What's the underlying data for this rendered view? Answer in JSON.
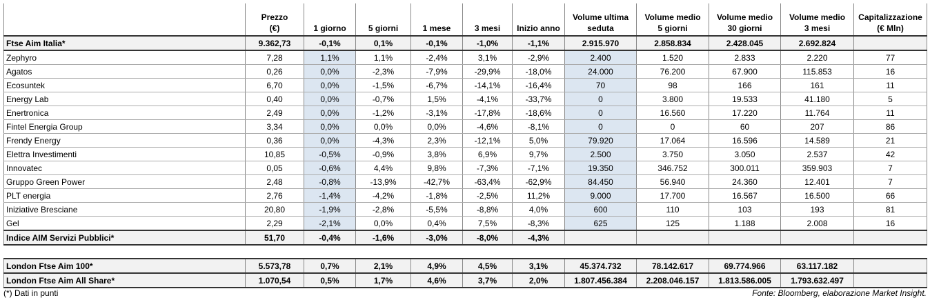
{
  "table": {
    "columns": [
      [
        "Prezzo",
        "(€)"
      ],
      [
        "1 giorno"
      ],
      [
        "5 giorni"
      ],
      [
        "1 mese"
      ],
      [
        "3 mesi"
      ],
      [
        "Inizio anno"
      ],
      [
        "Volume ultima",
        "seduta"
      ],
      [
        "Volume medio",
        "5 giorni"
      ],
      [
        "Volume medio",
        "30 giorni"
      ],
      [
        "Volume medio",
        "3 mesi"
      ],
      [
        "Capitalizzazione",
        "(€ Mln)"
      ]
    ],
    "sections": [
      {
        "rows": [
          [
            "Ftse Aim Italia*",
            "9.362,73",
            "-0,1%",
            "0,1%",
            "-0,1%",
            "-1,0%",
            "-1,1%",
            "2.915.970",
            "2.858.834",
            "2.428.045",
            "2.692.824",
            null
          ]
        ]
      },
      {
        "rows": [
          [
            "Zephyro",
            "7,28",
            "1,1%",
            "1,1%",
            "-2,4%",
            "3,1%",
            "-2,9%",
            "2.400",
            "1.520",
            "2.833",
            "2.220",
            "77"
          ],
          [
            "Agatos",
            "0,26",
            "0,0%",
            "-2,3%",
            "-7,9%",
            "-29,9%",
            "-18,0%",
            "24.000",
            "76.200",
            "67.900",
            "115.853",
            "16"
          ],
          [
            "Ecosuntek",
            "6,70",
            "0,0%",
            "-1,5%",
            "-6,7%",
            "-14,1%",
            "-16,4%",
            "70",
            "98",
            "166",
            "161",
            "11"
          ],
          [
            "Energy Lab",
            "0,40",
            "0,0%",
            "-0,7%",
            "1,5%",
            "-4,1%",
            "-33,7%",
            "0",
            "3.800",
            "19.533",
            "41.180",
            "5"
          ],
          [
            "Enertronica",
            "2,49",
            "0,0%",
            "-1,2%",
            "-3,1%",
            "-17,8%",
            "-18,6%",
            "0",
            "16.560",
            "17.220",
            "11.764",
            "11"
          ],
          [
            "Fintel Energia Group",
            "3,34",
            "0,0%",
            "0,0%",
            "0,0%",
            "-4,6%",
            "-8,1%",
            "0",
            "0",
            "60",
            "207",
            "86"
          ],
          [
            "Frendy Energy",
            "0,36",
            "0,0%",
            "-4,3%",
            "2,3%",
            "-12,1%",
            "5,0%",
            "79.920",
            "17.064",
            "16.596",
            "14.589",
            "21"
          ],
          [
            "Elettra Investimenti",
            "10,85",
            "-0,5%",
            "-0,9%",
            "3,8%",
            "6,9%",
            "9,7%",
            "2.500",
            "3.750",
            "3.050",
            "2.537",
            "42"
          ],
          [
            "Innovatec",
            "0,05",
            "-0,6%",
            "4,4%",
            "9,8%",
            "-7,3%",
            "-7,1%",
            "19.350",
            "346.752",
            "300.011",
            "359.903",
            "7"
          ],
          [
            "Gruppo Green Power",
            "2,48",
            "-0,8%",
            "-13,9%",
            "-42,7%",
            "-63,4%",
            "-62,9%",
            "84.450",
            "56.940",
            "24.360",
            "12.401",
            "7"
          ],
          [
            "PLT energia",
            "2,76",
            "-1,4%",
            "-4,2%",
            "-1,8%",
            "-2,5%",
            "11,2%",
            "9.000",
            "17.700",
            "16.567",
            "16.500",
            "66"
          ],
          [
            "Iniziative Bresciane",
            "20,80",
            "-1,9%",
            "-2,8%",
            "-5,5%",
            "-8,8%",
            "4,0%",
            "600",
            "110",
            "103",
            "193",
            "81"
          ],
          [
            "Gel",
            "2,29",
            "-2,1%",
            "0,0%",
            "0,4%",
            "7,5%",
            "-8,3%",
            "625",
            "125",
            "1.188",
            "2.008",
            "16"
          ]
        ]
      },
      {
        "rows": [
          [
            "Indice AIM Servizi Pubblici*",
            "51,70",
            "-0,4%",
            "-1,6%",
            "-3,0%",
            "-8,0%",
            "-4,3%",
            null,
            null,
            null,
            null,
            null
          ]
        ]
      },
      {
        "rows": [
          [
            "London Ftse Aim 100*",
            "5.573,78",
            "0,7%",
            "2,1%",
            "4,9%",
            "4,5%",
            "3,1%",
            "45.374.732",
            "78.142.617",
            "69.774.966",
            "63.117.182",
            null
          ],
          [
            "London Ftse Aim All Share*",
            "1.070,54",
            "0,5%",
            "1,7%",
            "4,6%",
            "3,7%",
            "2,0%",
            "1.807.456.384",
            "2.208.046.157",
            "1.813.586.005",
            "1.793.632.497",
            null
          ]
        ]
      }
    ]
  },
  "footer": {
    "note": "(*) Dati in punti",
    "source": "Fonte: Bloomberg, elaborazione Market Insight."
  }
}
